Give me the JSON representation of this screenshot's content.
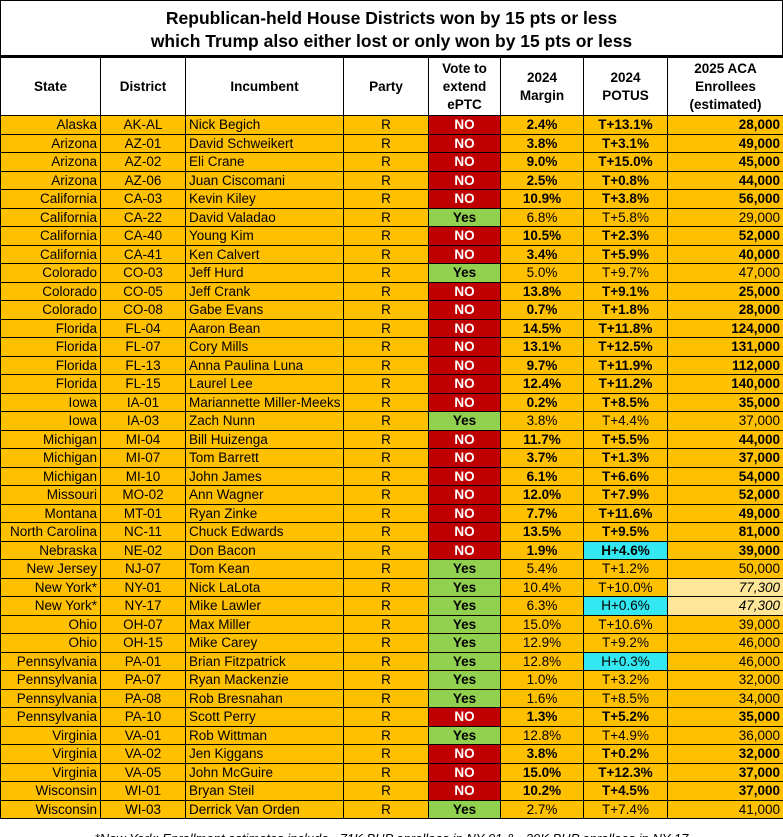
{
  "title": {
    "line1": "Republican-held House Districts won by 15 pts or less",
    "line2": "which Trump also either lost or only won by 15 pts or less"
  },
  "headers": {
    "state": "State",
    "district": "District",
    "incumbent": "Incumbent",
    "party": "Party",
    "vote": "Vote to extend ePTC",
    "margin": "2024 Margin",
    "potus": "2024 POTUS",
    "enrollees": "2025 ACA Enrollees (estimated)"
  },
  "colors": {
    "row": "#FFC000",
    "no": "#C00000",
    "yes": "#92D050",
    "harris": "#33E8F0",
    "estimate": "#FFE699"
  },
  "rows": [
    [
      "Alaska",
      "AK-AL",
      "Nick Begich",
      "R",
      "NO",
      "2.4%",
      "T+13.1%",
      "28,000"
    ],
    [
      "Arizona",
      "AZ-01",
      "David Schweikert",
      "R",
      "NO",
      "3.8%",
      "T+3.1%",
      "49,000"
    ],
    [
      "Arizona",
      "AZ-02",
      "Eli Crane",
      "R",
      "NO",
      "9.0%",
      "T+15.0%",
      "45,000"
    ],
    [
      "Arizona",
      "AZ-06",
      "Juan Ciscomani",
      "R",
      "NO",
      "2.5%",
      "T+0.8%",
      "44,000"
    ],
    [
      "California",
      "CA-03",
      "Kevin Kiley",
      "R",
      "NO",
      "10.9%",
      "T+3.8%",
      "56,000"
    ],
    [
      "California",
      "CA-22",
      "David Valadao",
      "R",
      "Yes",
      "6.8%",
      "T+5.8%",
      "29,000"
    ],
    [
      "California",
      "CA-40",
      "Young Kim",
      "R",
      "NO",
      "10.5%",
      "T+2.3%",
      "52,000"
    ],
    [
      "California",
      "CA-41",
      "Ken Calvert",
      "R",
      "NO",
      "3.4%",
      "T+5.9%",
      "40,000"
    ],
    [
      "Colorado",
      "CO-03",
      "Jeff Hurd",
      "R",
      "Yes",
      "5.0%",
      "T+9.7%",
      "47,000"
    ],
    [
      "Colorado",
      "CO-05",
      "Jeff Crank",
      "R",
      "NO",
      "13.8%",
      "T+9.1%",
      "25,000"
    ],
    [
      "Colorado",
      "CO-08",
      "Gabe Evans",
      "R",
      "NO",
      "0.7%",
      "T+1.8%",
      "28,000"
    ],
    [
      "Florida",
      "FL-04",
      "Aaron Bean",
      "R",
      "NO",
      "14.5%",
      "T+11.8%",
      "124,000"
    ],
    [
      "Florida",
      "FL-07",
      "Cory Mills",
      "R",
      "NO",
      "13.1%",
      "T+12.5%",
      "131,000"
    ],
    [
      "Florida",
      "FL-13",
      "Anna Paulina Luna",
      "R",
      "NO",
      "9.7%",
      "T+11.9%",
      "112,000"
    ],
    [
      "Florida",
      "FL-15",
      "Laurel Lee",
      "R",
      "NO",
      "12.4%",
      "T+11.2%",
      "140,000"
    ],
    [
      "Iowa",
      "IA-01",
      "Mariannette Miller-Meeks",
      "R",
      "NO",
      "0.2%",
      "T+8.5%",
      "35,000"
    ],
    [
      "Iowa",
      "IA-03",
      "Zach Nunn",
      "R",
      "Yes",
      "3.8%",
      "T+4.4%",
      "37,000"
    ],
    [
      "Michigan",
      "MI-04",
      "Bill Huizenga",
      "R",
      "NO",
      "11.7%",
      "T+5.5%",
      "44,000"
    ],
    [
      "Michigan",
      "MI-07",
      "Tom Barrett",
      "R",
      "NO",
      "3.7%",
      "T+1.3%",
      "37,000"
    ],
    [
      "Michigan",
      "MI-10",
      "John James",
      "R",
      "NO",
      "6.1%",
      "T+6.6%",
      "54,000"
    ],
    [
      "Missouri",
      "MO-02",
      "Ann Wagner",
      "R",
      "NO",
      "12.0%",
      "T+7.9%",
      "52,000"
    ],
    [
      "Montana",
      "MT-01",
      "Ryan Zinke",
      "R",
      "NO",
      "7.7%",
      "T+11.6%",
      "49,000"
    ],
    [
      "North Carolina",
      "NC-11",
      "Chuck Edwards",
      "R",
      "NO",
      "13.5%",
      "T+9.5%",
      "81,000"
    ],
    [
      "Nebraska",
      "NE-02",
      "Don Bacon",
      "R",
      "NO",
      "1.9%",
      "H+4.6%",
      "39,000"
    ],
    [
      "New Jersey",
      "NJ-07",
      "Tom Kean",
      "R",
      "Yes",
      "5.4%",
      "T+1.2%",
      "50,000"
    ],
    [
      "New York*",
      "NY-01",
      "Nick LaLota",
      "R",
      "Yes",
      "10.4%",
      "T+10.0%",
      "77,300"
    ],
    [
      "New York*",
      "NY-17",
      "Mike Lawler",
      "R",
      "Yes",
      "6.3%",
      "H+0.6%",
      "47,300"
    ],
    [
      "Ohio",
      "OH-07",
      "Max Miller",
      "R",
      "Yes",
      "15.0%",
      "T+10.6%",
      "39,000"
    ],
    [
      "Ohio",
      "OH-15",
      "Mike Carey",
      "R",
      "Yes",
      "12.9%",
      "T+9.2%",
      "46,000"
    ],
    [
      "Pennsylvania",
      "PA-01",
      "Brian Fitzpatrick",
      "R",
      "Yes",
      "12.8%",
      "H+0.3%",
      "46,000"
    ],
    [
      "Pennsylvania",
      "PA-07",
      "Ryan Mackenzie",
      "R",
      "Yes",
      "1.0%",
      "T+3.2%",
      "32,000"
    ],
    [
      "Pennsylvania",
      "PA-08",
      "Rob Bresnahan",
      "R",
      "Yes",
      "1.6%",
      "T+8.5%",
      "34,000"
    ],
    [
      "Pennsylvania",
      "PA-10",
      "Scott Perry",
      "R",
      "NO",
      "1.3%",
      "T+5.2%",
      "35,000"
    ],
    [
      "Virginia",
      "VA-01",
      "Rob Wittman",
      "R",
      "Yes",
      "12.8%",
      "T+4.9%",
      "36,000"
    ],
    [
      "Virginia",
      "VA-02",
      "Jen Kiggans",
      "R",
      "NO",
      "3.8%",
      "T+0.2%",
      "32,000"
    ],
    [
      "Virginia",
      "VA-05",
      "John McGuire",
      "R",
      "NO",
      "15.0%",
      "T+12.3%",
      "37,000"
    ],
    [
      "Wisconsin",
      "WI-01",
      "Bryan Steil",
      "R",
      "NO",
      "10.2%",
      "T+4.5%",
      "37,000"
    ],
    [
      "Wisconsin",
      "WI-03",
      "Derrick Van Orden",
      "R",
      "Yes",
      "2.7%",
      "T+7.4%",
      "41,000"
    ]
  ],
  "footnote": "*New York: Enrollment estimates include ~71K BHP enrollees in NY-01 & ~39K BHP enrollees in NY-17"
}
